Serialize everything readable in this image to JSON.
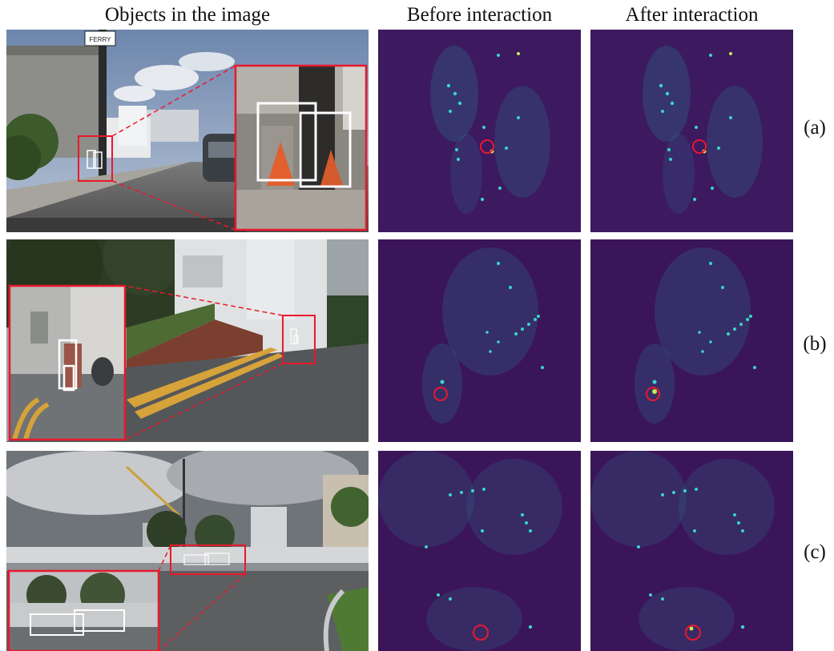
{
  "headers": {
    "objects": "Objects in the image",
    "before": "Before interaction",
    "after": "After interaction"
  },
  "rows": [
    {
      "label": "(a)",
      "sign_text": "FERRY"
    },
    {
      "label": "(b)"
    },
    {
      "label": "(c)"
    }
  ],
  "colors": {
    "heatmap_bg": "#3b1559",
    "highlight_red": "#e8192c",
    "box_white": "#ffffff",
    "hotspot_cyan": "#3ad6c6"
  }
}
